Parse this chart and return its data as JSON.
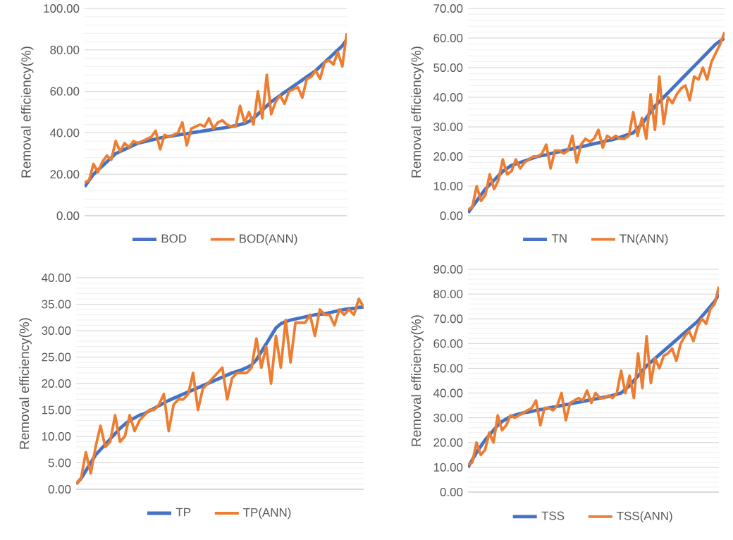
{
  "chart_data": [
    {
      "type": "line",
      "ylabel": "Removal efficiency(%)",
      "categories": [
        null,
        null,
        null,
        null,
        null,
        null,
        null,
        null,
        null,
        null,
        null,
        null,
        null,
        null,
        null,
        null,
        null,
        null,
        null,
        null,
        null,
        null,
        null,
        null,
        null,
        null,
        null,
        null,
        null,
        null,
        null,
        null,
        null,
        null,
        null,
        null,
        null,
        null,
        null,
        null,
        null,
        null,
        null,
        null,
        null,
        null,
        null,
        null,
        null,
        null,
        null,
        null,
        null,
        null,
        null,
        null,
        null,
        null,
        null,
        null
      ],
      "series": [
        {
          "name": "BOD",
          "color": "#4472c4",
          "values": [
            14,
            17,
            20,
            22,
            24,
            26,
            28,
            30,
            31,
            32,
            33,
            34,
            35,
            35.5,
            36,
            36.5,
            37,
            37.5,
            38,
            38.3,
            38.6,
            39,
            39.3,
            39.6,
            40,
            40.3,
            40.6,
            41,
            41.3,
            41.6,
            42,
            42.3,
            42.6,
            43,
            43.5,
            44,
            44.5,
            45.5,
            47,
            49,
            51,
            53,
            55,
            56.5,
            58,
            59.5,
            61,
            62.5,
            64,
            65.5,
            67,
            68.5,
            70,
            72,
            74,
            76,
            78,
            80,
            82,
            85
          ]
        },
        {
          "name": "BOD(ANN)",
          "color": "#ed7d31",
          "values": [
            16,
            17,
            25,
            21,
            26,
            29,
            27,
            36,
            31,
            35,
            33,
            36,
            35,
            36,
            37,
            38,
            41,
            32,
            39,
            38,
            39,
            40,
            45,
            34,
            42,
            43,
            44,
            43,
            47,
            42,
            45,
            46,
            44,
            43,
            43,
            53,
            45,
            50,
            44,
            60,
            47,
            68,
            49,
            55,
            58,
            54,
            60,
            61,
            62,
            57,
            66,
            67,
            70,
            66,
            74,
            75,
            73,
            79,
            72,
            88
          ]
        }
      ],
      "ylim": [
        0,
        100
      ],
      "yticks": [
        {
          "value": 0,
          "label": "0.00"
        },
        {
          "value": 20,
          "label": "20.00"
        },
        {
          "value": 40,
          "label": "40.00"
        },
        {
          "value": 60,
          "label": "60.00"
        },
        {
          "value": 80,
          "label": "80.00"
        },
        {
          "value": 100,
          "label": "100.00"
        }
      ],
      "grid": "y",
      "legend": "bottom"
    },
    {
      "type": "line",
      "ylabel": "Removal efficiency(%)",
      "categories": [
        null,
        null,
        null,
        null,
        null,
        null,
        null,
        null,
        null,
        null,
        null,
        null,
        null,
        null,
        null,
        null,
        null,
        null,
        null,
        null,
        null,
        null,
        null,
        null,
        null,
        null,
        null,
        null,
        null,
        null,
        null,
        null,
        null,
        null,
        null,
        null,
        null,
        null,
        null,
        null,
        null,
        null,
        null,
        null,
        null,
        null,
        null,
        null,
        null,
        null,
        null,
        null,
        null,
        null,
        null,
        null,
        null,
        null,
        null,
        null
      ],
      "series": [
        {
          "name": "TN",
          "color": "#4472c4",
          "values": [
            1,
            3,
            5,
            7,
            9,
            10.5,
            12,
            13.5,
            15,
            16,
            17,
            17.5,
            18,
            18.5,
            19,
            19.5,
            20,
            20.3,
            20.6,
            21,
            21.3,
            21.6,
            22,
            22.3,
            22.6,
            23,
            23.3,
            23.6,
            24,
            24.3,
            24.6,
            25,
            25.3,
            25.6,
            26,
            26.5,
            27,
            27.5,
            28,
            29.5,
            31,
            33,
            35,
            37,
            38.5,
            40,
            41.5,
            43,
            44.5,
            46,
            47.5,
            49,
            50.5,
            52,
            53.5,
            55,
            56.5,
            58,
            59,
            60
          ]
        },
        {
          "name": "TN(ANN)",
          "color": "#ed7d31",
          "values": [
            2,
            3,
            10,
            5,
            7,
            14,
            9,
            12,
            19,
            14,
            15,
            19,
            16,
            18,
            19,
            20,
            20,
            21,
            24,
            16,
            22,
            22,
            21,
            22,
            27,
            18,
            24,
            26,
            25,
            26,
            29,
            23,
            27,
            26,
            27,
            26,
            26,
            27,
            35,
            27,
            33,
            26,
            41,
            29,
            47,
            31,
            40,
            38,
            41,
            43,
            44,
            39,
            47,
            46,
            50,
            46,
            52,
            55,
            58,
            62
          ]
        }
      ],
      "ylim": [
        0,
        70
      ],
      "yticks": [
        {
          "value": 0,
          "label": "0.00"
        },
        {
          "value": 10,
          "label": "10.00"
        },
        {
          "value": 20,
          "label": "20.00"
        },
        {
          "value": 30,
          "label": "30.00"
        },
        {
          "value": 40,
          "label": "40.00"
        },
        {
          "value": 50,
          "label": "50.00"
        },
        {
          "value": 60,
          "label": "60.00"
        },
        {
          "value": 70,
          "label": "70.00"
        }
      ],
      "grid": "y",
      "legend": "bottom"
    },
    {
      "type": "line",
      "ylabel": "Removal efficiency(%)",
      "categories": [
        null,
        null,
        null,
        null,
        null,
        null,
        null,
        null,
        null,
        null,
        null,
        null,
        null,
        null,
        null,
        null,
        null,
        null,
        null,
        null,
        null,
        null,
        null,
        null,
        null,
        null,
        null,
        null,
        null,
        null,
        null,
        null,
        null,
        null,
        null,
        null,
        null,
        null,
        null,
        null,
        null,
        null,
        null,
        null,
        null,
        null,
        null,
        null,
        null,
        null,
        null,
        null,
        null,
        null,
        null,
        null,
        null,
        null,
        null,
        null
      ],
      "series": [
        {
          "name": "TP",
          "color": "#4472c4",
          "values": [
            1,
            2,
            3.5,
            5,
            6.5,
            7.5,
            8.5,
            9.5,
            10.5,
            11.5,
            12.3,
            13,
            13.5,
            14,
            14.3,
            14.8,
            15.3,
            15.8,
            16.3,
            16.8,
            17.2,
            17.6,
            18,
            18.4,
            18.8,
            19.2,
            19.6,
            20,
            20.4,
            20.8,
            21.2,
            21.6,
            22,
            22.3,
            22.6,
            23,
            23.5,
            24.5,
            26,
            27.5,
            29,
            30.5,
            31.3,
            31.7,
            32,
            32.2,
            32.4,
            32.6,
            32.8,
            33,
            33.1,
            33.2,
            33.4,
            33.6,
            33.8,
            34,
            34.1,
            34.2,
            34.4,
            34.5
          ]
        },
        {
          "name": "TP(ANN)",
          "color": "#ed7d31",
          "values": [
            1,
            2,
            7,
            3,
            8,
            12,
            8,
            9,
            14,
            9,
            10,
            14,
            11,
            13,
            14,
            15,
            15,
            16,
            18,
            11,
            16,
            17,
            17,
            18,
            22,
            15,
            19,
            20,
            21,
            22,
            23,
            17,
            21,
            22,
            22,
            22,
            23,
            28.5,
            23,
            27,
            20,
            29,
            23,
            32,
            24,
            31.5,
            31.5,
            31.5,
            33,
            29,
            34,
            33,
            33,
            31,
            34,
            33,
            34,
            33,
            36,
            34.5
          ]
        }
      ],
      "ylim": [
        0,
        40
      ],
      "yticks": [
        {
          "value": 0,
          "label": "0.00"
        },
        {
          "value": 5,
          "label": "5.00"
        },
        {
          "value": 10,
          "label": "10.00"
        },
        {
          "value": 15,
          "label": "15.00"
        },
        {
          "value": 20,
          "label": "20.00"
        },
        {
          "value": 25,
          "label": "25.00"
        },
        {
          "value": 30,
          "label": "30.00"
        },
        {
          "value": 35,
          "label": "35.00"
        },
        {
          "value": 40,
          "label": "40.00"
        }
      ],
      "grid": "y",
      "legend": "bottom"
    },
    {
      "type": "line",
      "ylabel": "Removal efficiency(%)",
      "categories": [
        null,
        null,
        null,
        null,
        null,
        null,
        null,
        null,
        null,
        null,
        null,
        null,
        null,
        null,
        null,
        null,
        null,
        null,
        null,
        null,
        null,
        null,
        null,
        null,
        null,
        null,
        null,
        null,
        null,
        null,
        null,
        null,
        null,
        null,
        null,
        null,
        null,
        null,
        null,
        null,
        null,
        null,
        null,
        null,
        null,
        null,
        null,
        null,
        null,
        null,
        null,
        null,
        null,
        null,
        null,
        null,
        null,
        null,
        null,
        null
      ],
      "series": [
        {
          "name": "TSS",
          "color": "#4472c4",
          "values": [
            10,
            13,
            16,
            18.5,
            21,
            23,
            25,
            27,
            28.5,
            29.5,
            30.5,
            31,
            31.5,
            32,
            32.3,
            32.6,
            33,
            33.3,
            33.6,
            34,
            34.3,
            34.6,
            35,
            35.3,
            35.6,
            36,
            36.3,
            36.6,
            37,
            37.3,
            37.6,
            38,
            38.3,
            38.6,
            39,
            39.5,
            40,
            41.5,
            43,
            45,
            47,
            49,
            51,
            52.5,
            54,
            55.5,
            57,
            58.5,
            60,
            61.5,
            63,
            64.5,
            66,
            67.5,
            69,
            71,
            73,
            75,
            77,
            80
          ]
        },
        {
          "name": "TSS(ANN)",
          "color": "#ed7d31",
          "values": [
            11,
            12,
            20,
            15,
            17,
            24,
            20,
            31,
            25,
            27,
            31,
            30,
            31,
            32,
            33,
            34,
            37,
            27,
            34,
            34,
            33,
            35,
            40,
            29,
            36,
            37,
            38,
            37,
            41,
            36,
            40,
            38,
            38,
            39,
            38,
            40,
            49,
            40,
            47,
            38,
            56,
            42,
            63,
            44,
            54,
            50,
            55,
            56,
            58,
            53,
            60,
            63,
            65,
            61,
            67,
            70,
            68,
            74,
            76,
            83
          ]
        }
      ],
      "ylim": [
        0,
        90
      ],
      "yticks": [
        {
          "value": 0,
          "label": "0.00"
        },
        {
          "value": 10,
          "label": "10.00"
        },
        {
          "value": 20,
          "label": "20.00"
        },
        {
          "value": 30,
          "label": "30.00"
        },
        {
          "value": 40,
          "label": "40.00"
        },
        {
          "value": 50,
          "label": "50.00"
        },
        {
          "value": 60,
          "label": "60.00"
        },
        {
          "value": 70,
          "label": "70.00"
        },
        {
          "value": 80,
          "label": "80.00"
        },
        {
          "value": 90,
          "label": "90.00"
        }
      ],
      "grid": "y",
      "legend": "bottom"
    }
  ]
}
